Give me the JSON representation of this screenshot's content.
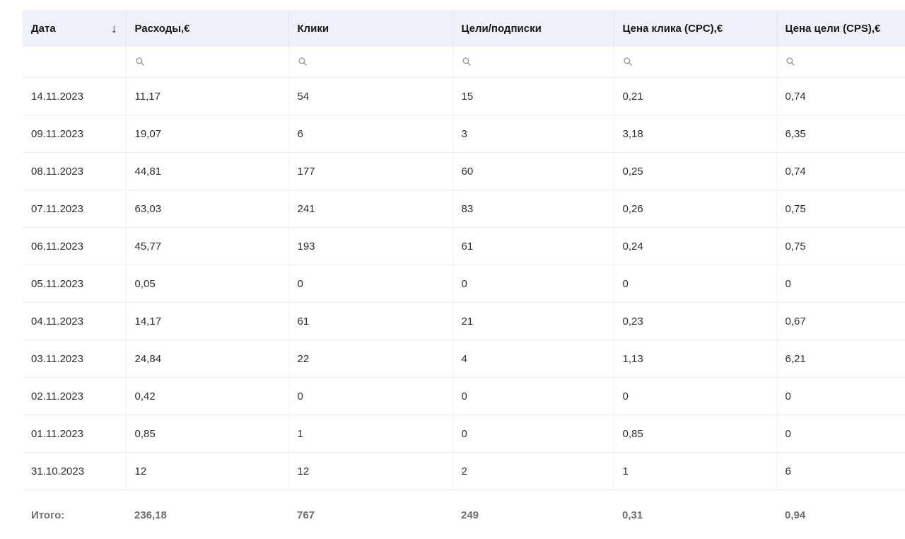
{
  "table": {
    "sort_icon": "↓",
    "columns": [
      {
        "key": "date",
        "label": "Дата",
        "sorted_desc": true,
        "has_filter": false
      },
      {
        "key": "costs",
        "label": "Расходы,€",
        "sorted_desc": false,
        "has_filter": true
      },
      {
        "key": "clicks",
        "label": "Клики",
        "sorted_desc": false,
        "has_filter": true
      },
      {
        "key": "goals",
        "label": "Цели/подписки",
        "sorted_desc": false,
        "has_filter": true
      },
      {
        "key": "cpc",
        "label": "Цена клика (CPC),€",
        "sorted_desc": false,
        "has_filter": true
      },
      {
        "key": "cps",
        "label": "Цена цели (CPS),€",
        "sorted_desc": false,
        "has_filter": true
      }
    ],
    "rows": [
      [
        "14.11.2023",
        "11,17",
        "54",
        "15",
        "0,21",
        "0,74"
      ],
      [
        "09.11.2023",
        "19,07",
        "6",
        "3",
        "3,18",
        "6,35"
      ],
      [
        "08.11.2023",
        "44,81",
        "177",
        "60",
        "0,25",
        "0,74"
      ],
      [
        "07.11.2023",
        "63,03",
        "241",
        "83",
        "0,26",
        "0,75"
      ],
      [
        "06.11.2023",
        "45,77",
        "193",
        "61",
        "0,24",
        "0,75"
      ],
      [
        "05.11.2023",
        "0,05",
        "0",
        "0",
        "0",
        "0"
      ],
      [
        "04.11.2023",
        "14,17",
        "61",
        "21",
        "0,23",
        "0,67"
      ],
      [
        "03.11.2023",
        "24,84",
        "22",
        "4",
        "1,13",
        "6,21"
      ],
      [
        "02.11.2023",
        "0,42",
        "0",
        "0",
        "0",
        "0"
      ],
      [
        "01.11.2023",
        "0,85",
        "1",
        "0",
        "0,85",
        "0"
      ],
      [
        "31.10.2023",
        "12",
        "12",
        "2",
        "1",
        "6"
      ]
    ],
    "totals": {
      "label": "Итого:",
      "values": [
        "236,18",
        "767",
        "249",
        "0,31",
        "0,94"
      ]
    }
  },
  "colors": {
    "header_bg": "#eef2f7",
    "row_border": "#ebebeb",
    "cell_border": "#f1f1f1",
    "data_text": "#2e2e2e",
    "header_text": "#181818",
    "totals_text": "#6f6f6f",
    "icon": "#8f8f8f"
  }
}
